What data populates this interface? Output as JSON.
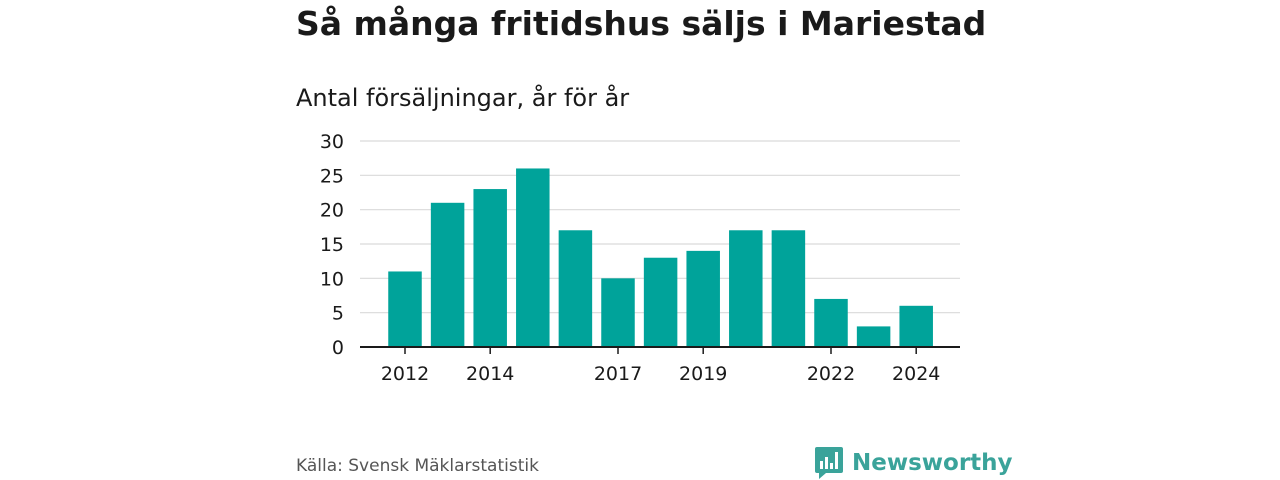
{
  "header": {
    "title": "Så många fritidshus säljs i Mariestad",
    "subtitle": "Antal försäljningar, år för år"
  },
  "footer": {
    "source": "Källa: Svensk Mäklarstatistik",
    "brand": "Newsworthy"
  },
  "colors": {
    "bar": "#00a39a",
    "grid": "#d9d9d9",
    "axis": "#1a1a1a",
    "brand": "#3aa39a"
  },
  "icons": {
    "brand_logo": "newsworthy-chart-bubble-icon"
  },
  "chart_data": {
    "type": "bar",
    "categories": [
      "2012",
      "2013",
      "2014",
      "2015",
      "2016",
      "2017",
      "2018",
      "2019",
      "2020",
      "2021",
      "2022",
      "2023",
      "2024"
    ],
    "values": [
      11,
      21,
      23,
      26,
      17,
      10,
      13,
      14,
      17,
      17,
      7,
      3,
      6
    ],
    "x_tick_labels": [
      "2012",
      "2014",
      "2017",
      "2019",
      "2022",
      "2024"
    ],
    "y_ticks": [
      0,
      5,
      10,
      15,
      20,
      25,
      30
    ],
    "ylim": [
      0,
      30
    ],
    "title": "Så många fritidshus säljs i Mariestad",
    "subtitle": "Antal försäljningar, år för år",
    "xlabel": "",
    "ylabel": "",
    "grid": true,
    "legend": "none"
  }
}
